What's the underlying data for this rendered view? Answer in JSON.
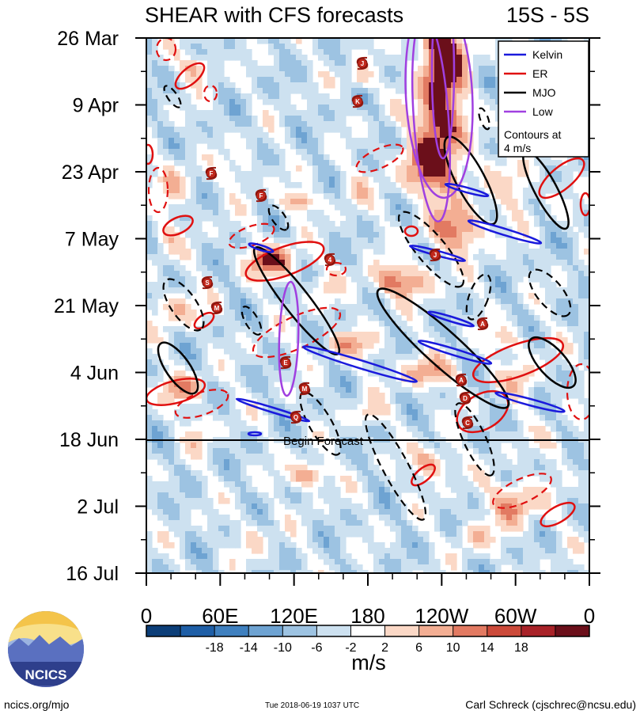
{
  "chart_data": {
    "type": "heatmap",
    "title": "SHEAR with CFS forecasts",
    "region": "15S - 5S",
    "ytick_labels": [
      "26 Mar",
      "9 Apr",
      "23 Apr",
      "7 May",
      "21 May",
      "4 Jun",
      "18 Jun",
      "2 Jul",
      "16 Jul"
    ],
    "xtick_labels": [
      "0",
      "60E",
      "120E",
      "180",
      "120W",
      "60W",
      "0"
    ],
    "x_range_deg": [
      0,
      360
    ],
    "colorbar": {
      "ticks": [
        "-18",
        "-14",
        "-10",
        "-6",
        "-2",
        "2",
        "6",
        "10",
        "14",
        "18"
      ],
      "units": "m/s",
      "colors": [
        "#0c3e78",
        "#1e5ea6",
        "#3f80bf",
        "#6ea3d2",
        "#9dc3e2",
        "#cde1f0",
        "#ffffff",
        "#fbd8c6",
        "#f3ae93",
        "#e27a62",
        "#cc4a3a",
        "#a82228",
        "#6b0f1a"
      ]
    },
    "forecast_annotation": "Begin Forecast",
    "legend": {
      "entries": [
        {
          "label": "Kelvin",
          "color": "#1a1adc"
        },
        {
          "label": "ER",
          "color": "#e01010"
        },
        {
          "label": "MJO",
          "color": "#000000"
        },
        {
          "label": "Low",
          "color": "#a040e0"
        }
      ],
      "note": "Contours at 4 m/s"
    },
    "storm_labels": [
      "J",
      "K",
      "F",
      "F",
      "S",
      "M",
      "4",
      "A",
      "E",
      "M",
      "Q",
      "A",
      "D",
      "C",
      "J"
    ]
  },
  "footer": {
    "logo_text": "NCICS",
    "url": "ncics.org/mjo",
    "timestamp": "Tue 2018-06-19 1037 UTC",
    "author": "Carl Schreck (cjschrec@ncsu.edu)"
  }
}
